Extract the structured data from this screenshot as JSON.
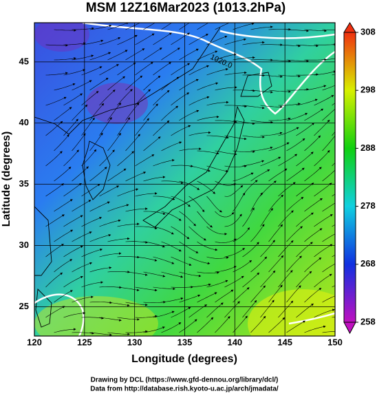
{
  "map": {
    "title": "MSM 12Z16Mar2023 (1013.2hPa)",
    "xlabel": "Longitude (degrees)",
    "ylabel": "Latitude  (degrees)",
    "xlim": [
      120,
      150
    ],
    "ylim": [
      22.6,
      48.2
    ],
    "xticks": [
      120,
      125,
      130,
      135,
      140,
      145,
      150
    ],
    "yticks": [
      25,
      30,
      35,
      40,
      45
    ],
    "contour_label": "1020.0",
    "colorbar": {
      "lim": [
        258,
        308
      ],
      "ticks": [
        258,
        268,
        278,
        288,
        298,
        308
      ]
    }
  },
  "footer": {
    "line1": "Drawing by DCL (https://www.gfd-dennou.org/library/dcl/)",
    "line2": "Data from http://database.rish.kyoto-u.ac.jp/arch/jmadata/"
  }
}
